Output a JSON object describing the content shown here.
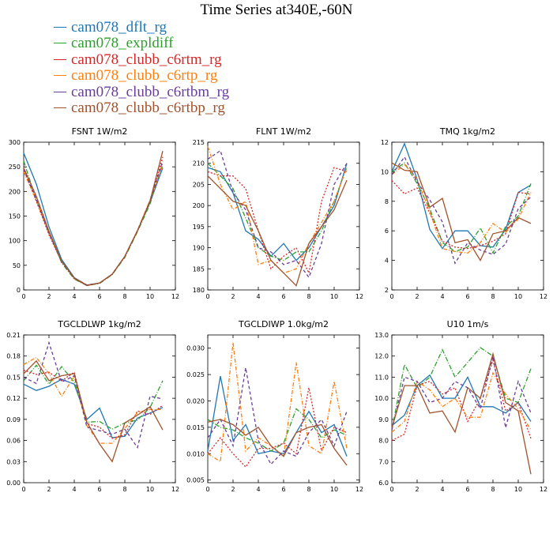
{
  "title": "Time Series at340E,-60N",
  "legend": [
    {
      "name": "cam078_dflt_rg",
      "color": "#1f77b4"
    },
    {
      "name": "cam078_expldiff",
      "color": "#2ca02c"
    },
    {
      "name": "cam078_clubb_c6rtm_rg",
      "color": "#d62728"
    },
    {
      "name": "cam078_clubb_c6rtp_rg",
      "color": "#ff7f0e"
    },
    {
      "name": "cam078_clubb_c6rtbm_rg",
      "color": "#6a3d9a"
    },
    {
      "name": "cam078_clubb_c6rtbp_rg",
      "color": "#a0522d"
    }
  ],
  "chart_data": [
    {
      "type": "line",
      "title": "FSNT   1W/m2",
      "x": [
        0,
        1,
        2,
        3,
        4,
        5,
        6,
        7,
        8,
        9,
        10,
        11
      ],
      "xlim": [
        0,
        12
      ],
      "xticks": [
        0,
        2,
        4,
        6,
        8,
        10,
        12
      ],
      "ylim": [
        0,
        300
      ],
      "yticks": [
        0,
        50,
        100,
        150,
        200,
        250,
        300
      ],
      "ytick_labels": [
        "0",
        "50",
        "100",
        "150",
        "200",
        "250",
        "300"
      ],
      "series": [
        {
          "name": "cam078_dflt_rg",
          "values": [
            278,
            215,
            128,
            62,
            25,
            10,
            14,
            32,
            68,
            120,
            178,
            248
          ]
        },
        {
          "name": "cam078_expldiff",
          "values": [
            262,
            182,
            116,
            55,
            22,
            9,
            13,
            31,
            66,
            118,
            175,
            258
          ]
        },
        {
          "name": "cam078_clubb_c6rtm_rg",
          "values": [
            244,
            180,
            112,
            57,
            23,
            9,
            14,
            32,
            68,
            121,
            182,
            270
          ]
        },
        {
          "name": "cam078_clubb_c6rtp_rg",
          "values": [
            240,
            182,
            114,
            58,
            24,
            10,
            14,
            32,
            68,
            121,
            183,
            252
          ]
        },
        {
          "name": "cam078_clubb_c6rtbm_rg",
          "values": [
            245,
            184,
            115,
            58,
            24,
            10,
            14,
            32,
            68,
            120,
            180,
            262
          ]
        },
        {
          "name": "cam078_clubb_c6rtbp_rg",
          "values": [
            248,
            190,
            119,
            58,
            24,
            9,
            14,
            32,
            68,
            120,
            181,
            282
          ]
        }
      ]
    },
    {
      "type": "line",
      "title": "FLNT   1W/m2",
      "x": [
        0,
        1,
        2,
        3,
        4,
        5,
        6,
        7,
        8,
        9,
        10,
        11
      ],
      "xlim": [
        0,
        12
      ],
      "xticks": [
        0,
        2,
        4,
        6,
        8,
        10,
        12
      ],
      "ylim": [
        180,
        215
      ],
      "yticks": [
        180,
        185,
        190,
        195,
        200,
        205,
        210,
        215
      ],
      "ytick_labels": [
        "180",
        "185",
        "190",
        "195",
        "200",
        "205",
        "210",
        "215"
      ],
      "series": [
        {
          "name": "cam078_dflt_rg",
          "values": [
            209,
            208,
            203,
            194,
            192,
            188,
            191,
            187,
            190,
            195,
            200,
            210
          ]
        },
        {
          "name": "cam078_expldiff",
          "values": [
            210,
            207,
            204,
            197,
            190,
            188,
            187,
            189,
            189,
            194,
            201,
            209
          ]
        },
        {
          "name": "cam078_clubb_c6rtm_rg",
          "values": [
            208,
            207,
            207,
            204,
            194,
            185,
            188,
            190,
            184,
            201,
            209,
            208
          ]
        },
        {
          "name": "cam078_clubb_c6rtp_rg",
          "values": [
            214,
            205,
            199,
            201,
            186,
            187,
            184,
            185,
            191,
            196,
            201,
            209
          ]
        },
        {
          "name": "cam078_clubb_c6rtbm_rg",
          "values": [
            211,
            213,
            203,
            199,
            190,
            189,
            186,
            187,
            183,
            191,
            205,
            210
          ]
        },
        {
          "name": "cam078_clubb_c6rtbp_rg",
          "values": [
            207,
            204,
            201,
            200,
            194,
            187,
            184,
            181,
            191,
            195,
            199,
            206
          ]
        }
      ]
    },
    {
      "type": "line",
      "title": "TMQ   1kg/m2",
      "x": [
        0,
        1,
        2,
        3,
        4,
        5,
        6,
        7,
        8,
        9,
        10,
        11
      ],
      "xlim": [
        0,
        12
      ],
      "xticks": [
        0,
        2,
        4,
        6,
        8,
        10,
        12
      ],
      "ylim": [
        2,
        12
      ],
      "yticks": [
        2,
        4,
        6,
        8,
        10,
        12
      ],
      "ytick_labels": [
        "2",
        "4",
        "6",
        "8",
        "10",
        "12"
      ],
      "series": [
        {
          "name": "cam078_dflt_rg",
          "values": [
            10.0,
            11.9,
            9.5,
            6.1,
            4.8,
            6.0,
            6.0,
            5.0,
            4.9,
            6.1,
            8.6,
            9.1
          ]
        },
        {
          "name": "cam078_expldiff",
          "values": [
            10.0,
            10.6,
            9.2,
            7.5,
            5.2,
            4.6,
            4.9,
            6.2,
            4.5,
            6.3,
            7.0,
            9.2
          ]
        },
        {
          "name": "cam078_clubb_c6rtm_rg",
          "values": [
            9.4,
            8.5,
            8.9,
            7.2,
            5.3,
            4.9,
            4.8,
            5.0,
            5.3,
            5.8,
            8.6,
            8.5
          ]
        },
        {
          "name": "cam078_clubb_c6rtp_rg",
          "values": [
            9.8,
            10.5,
            9.5,
            7.3,
            4.8,
            4.6,
            4.5,
            5.2,
            6.5,
            5.9,
            6.8,
            8.6
          ]
        },
        {
          "name": "cam078_clubb_c6rtbm_rg",
          "values": [
            9.8,
            11.0,
            9.3,
            8.1,
            6.6,
            3.8,
            5.2,
            4.7,
            4.4,
            5.1,
            7.5,
            8.3
          ]
        },
        {
          "name": "cam078_clubb_c6rtbp_rg",
          "values": [
            10.6,
            10.1,
            10.0,
            7.6,
            8.2,
            5.2,
            5.4,
            4.0,
            5.8,
            6.0,
            6.9,
            6.5
          ]
        }
      ]
    },
    {
      "type": "line",
      "title": "TGCLDLWP   1kg/m2",
      "x": [
        0,
        1,
        2,
        3,
        4,
        5,
        6,
        7,
        8,
        9,
        10,
        11
      ],
      "xlim": [
        0,
        12
      ],
      "xticks": [
        0,
        2,
        4,
        6,
        8,
        10,
        12
      ],
      "ylim": [
        0.0,
        0.21
      ],
      "yticks": [
        0.0,
        0.03,
        0.06,
        0.09,
        0.12,
        0.15,
        0.18,
        0.21
      ],
      "ytick_labels": [
        "0.00",
        "0.03",
        "0.06",
        "0.09",
        "0.12",
        "0.15",
        "0.18",
        "0.21"
      ],
      "series": [
        {
          "name": "cam078_dflt_rg",
          "values": [
            0.14,
            0.131,
            0.137,
            0.147,
            0.14,
            0.09,
            0.106,
            0.064,
            0.066,
            0.092,
            0.099,
            0.107
          ]
        },
        {
          "name": "cam078_expldiff",
          "values": [
            0.145,
            0.167,
            0.14,
            0.165,
            0.143,
            0.086,
            0.087,
            0.076,
            0.085,
            0.089,
            0.107,
            0.145
          ]
        },
        {
          "name": "cam078_clubb_c6rtm_rg",
          "values": [
            0.16,
            0.154,
            0.157,
            0.145,
            0.157,
            0.084,
            0.079,
            0.063,
            0.068,
            0.102,
            0.097,
            0.11
          ]
        },
        {
          "name": "cam078_clubb_c6rtp_rg",
          "values": [
            0.168,
            0.178,
            0.155,
            0.123,
            0.151,
            0.081,
            0.056,
            0.056,
            0.077,
            0.1,
            0.104,
            0.104
          ]
        },
        {
          "name": "cam078_clubb_c6rtbm_rg",
          "values": [
            0.15,
            0.141,
            0.199,
            0.143,
            0.152,
            0.079,
            0.074,
            0.069,
            0.076,
            0.05,
            0.123,
            0.119
          ]
        },
        {
          "name": "cam078_clubb_c6rtbp_rg",
          "values": [
            0.155,
            0.173,
            0.145,
            0.152,
            0.155,
            0.086,
            0.055,
            0.03,
            0.085,
            0.096,
            0.108,
            0.075
          ]
        }
      ]
    },
    {
      "type": "line",
      "title": "TGCLDIWP   1.0kg/m2",
      "x": [
        0,
        1,
        2,
        3,
        4,
        5,
        6,
        7,
        8,
        9,
        10,
        11
      ],
      "xlim": [
        0,
        12
      ],
      "xticks": [
        0,
        2,
        4,
        6,
        8,
        10,
        12
      ],
      "ylim": [
        0.0045,
        0.0325
      ],
      "yticks": [
        0.005,
        0.01,
        0.015,
        0.02,
        0.025,
        0.03
      ],
      "ytick_labels": [
        "0.005",
        "0.010",
        "0.015",
        "0.020",
        "0.025",
        "0.030"
      ],
      "series": [
        {
          "name": "cam078_dflt_rg",
          "values": [
            0.0105,
            0.0247,
            0.0125,
            0.0155,
            0.01,
            0.0105,
            0.01,
            0.014,
            0.018,
            0.014,
            0.0155,
            0.0095
          ]
        },
        {
          "name": "cam078_expldiff",
          "values": [
            0.0165,
            0.015,
            0.0145,
            0.013,
            0.012,
            0.0105,
            0.012,
            0.0185,
            0.0165,
            0.013,
            0.0145,
            0.0135
          ]
        },
        {
          "name": "cam078_clubb_c6rtm_rg",
          "values": [
            0.01,
            0.013,
            0.01,
            0.0075,
            0.011,
            0.011,
            0.012,
            0.01,
            0.0225,
            0.0105,
            0.015,
            0.014
          ]
        },
        {
          "name": "cam078_clubb_c6rtp_rg",
          "values": [
            0.01,
            0.0085,
            0.031,
            0.0105,
            0.013,
            0.0115,
            0.0095,
            0.0273,
            0.0115,
            0.01,
            0.0237,
            0.011
          ]
        },
        {
          "name": "cam078_clubb_c6rtbm_rg",
          "values": [
            0.013,
            0.0165,
            0.0115,
            0.0263,
            0.0125,
            0.008,
            0.0105,
            0.0095,
            0.014,
            0.0165,
            0.0115,
            0.018
          ]
        },
        {
          "name": "cam078_clubb_c6rtbp_rg",
          "values": [
            0.016,
            0.0165,
            0.0155,
            0.0135,
            0.015,
            0.0115,
            0.0095,
            0.014,
            0.015,
            0.0155,
            0.011,
            0.0078
          ]
        }
      ]
    },
    {
      "type": "line",
      "title": "U10   1m/s",
      "x": [
        0,
        1,
        2,
        3,
        4,
        5,
        6,
        7,
        8,
        9,
        10,
        11
      ],
      "xlim": [
        0,
        12
      ],
      "xticks": [
        0,
        2,
        4,
        6,
        8,
        10,
        12
      ],
      "ylim": [
        6,
        13
      ],
      "yticks": [
        6,
        7,
        8,
        9,
        10,
        11,
        12,
        13
      ],
      "ytick_labels": [
        "6.0",
        "7.0",
        "8.0",
        "9.0",
        "10.0",
        "11.0",
        "12.0",
        "13.0"
      ],
      "series": [
        {
          "name": "cam078_dflt_rg",
          "values": [
            8.7,
            9.2,
            10.6,
            11.1,
            10.0,
            10.0,
            11.0,
            9.6,
            9.6,
            9.3,
            9.8,
            8.9
          ]
        },
        {
          "name": "cam078_expldiff",
          "values": [
            8.5,
            11.6,
            10.5,
            11.0,
            12.3,
            11.0,
            11.7,
            12.4,
            12.0,
            10.0,
            9.8,
            11.4
          ]
        },
        {
          "name": "cam078_clubb_c6rtm_rg",
          "values": [
            8.0,
            8.3,
            10.6,
            10.8,
            10.2,
            10.5,
            8.9,
            10.0,
            11.8,
            9.4,
            9.8,
            8.1
          ]
        },
        {
          "name": "cam078_clubb_c6rtp_rg",
          "values": [
            8.4,
            8.9,
            10.8,
            10.4,
            9.6,
            10.0,
            9.1,
            9.1,
            11.2,
            10.2,
            9.5,
            8.5
          ]
        },
        {
          "name": "cam078_clubb_c6rtbm_rg",
          "values": [
            8.5,
            11.0,
            10.8,
            9.8,
            10.0,
            10.8,
            10.5,
            9.5,
            12.0,
            8.6,
            10.8,
            9.3
          ]
        },
        {
          "name": "cam078_clubb_c6rtbp_rg",
          "values": [
            8.6,
            10.6,
            10.6,
            9.3,
            9.4,
            8.4,
            10.5,
            10.0,
            12.1,
            9.8,
            9.4,
            6.4
          ]
        }
      ]
    }
  ]
}
